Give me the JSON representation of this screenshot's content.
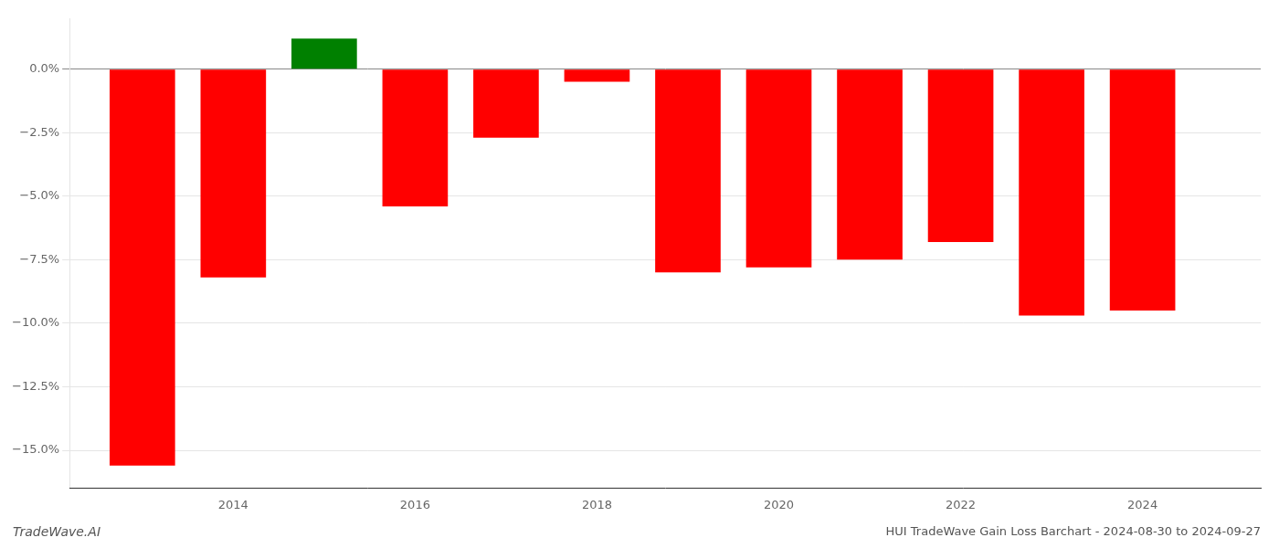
{
  "chart_data": {
    "type": "bar",
    "title": "HUI TradeWave Gain Loss Barchart - 2024-08-30 to 2024-09-27",
    "annotations": [
      "TradeWave.AI"
    ],
    "x": [
      2013,
      2014,
      2015,
      2016,
      2017,
      2018,
      2019,
      2020,
      2021,
      2022,
      2023,
      2024
    ],
    "values": [
      -15.6,
      -8.2,
      1.2,
      -5.4,
      -2.7,
      -0.5,
      -8.0,
      -7.8,
      -7.5,
      -6.8,
      -9.7,
      -9.5
    ],
    "colors": [
      "#ff0000",
      "#ff0000",
      "#008000",
      "#ff0000",
      "#ff0000",
      "#ff0000",
      "#ff0000",
      "#ff0000",
      "#ff0000",
      "#ff0000",
      "#ff0000",
      "#ff0000"
    ],
    "xlim": [
      2012.2,
      2025.3
    ],
    "xticks": [
      2014,
      2016,
      2018,
      2020,
      2022,
      2024
    ],
    "ylim": [
      -16.5,
      2.0
    ],
    "yticks": [
      {
        "value": 0.0,
        "label": "0.0%"
      },
      {
        "value": -2.5,
        "label": "−2.5%"
      },
      {
        "value": -5.0,
        "label": "−5.0%"
      },
      {
        "value": -7.5,
        "label": "−7.5%"
      },
      {
        "value": -10.0,
        "label": "−10.0%"
      },
      {
        "value": -12.5,
        "label": "−12.5%"
      },
      {
        "value": -15.0,
        "label": "−15.0%"
      }
    ],
    "grid": "y"
  }
}
